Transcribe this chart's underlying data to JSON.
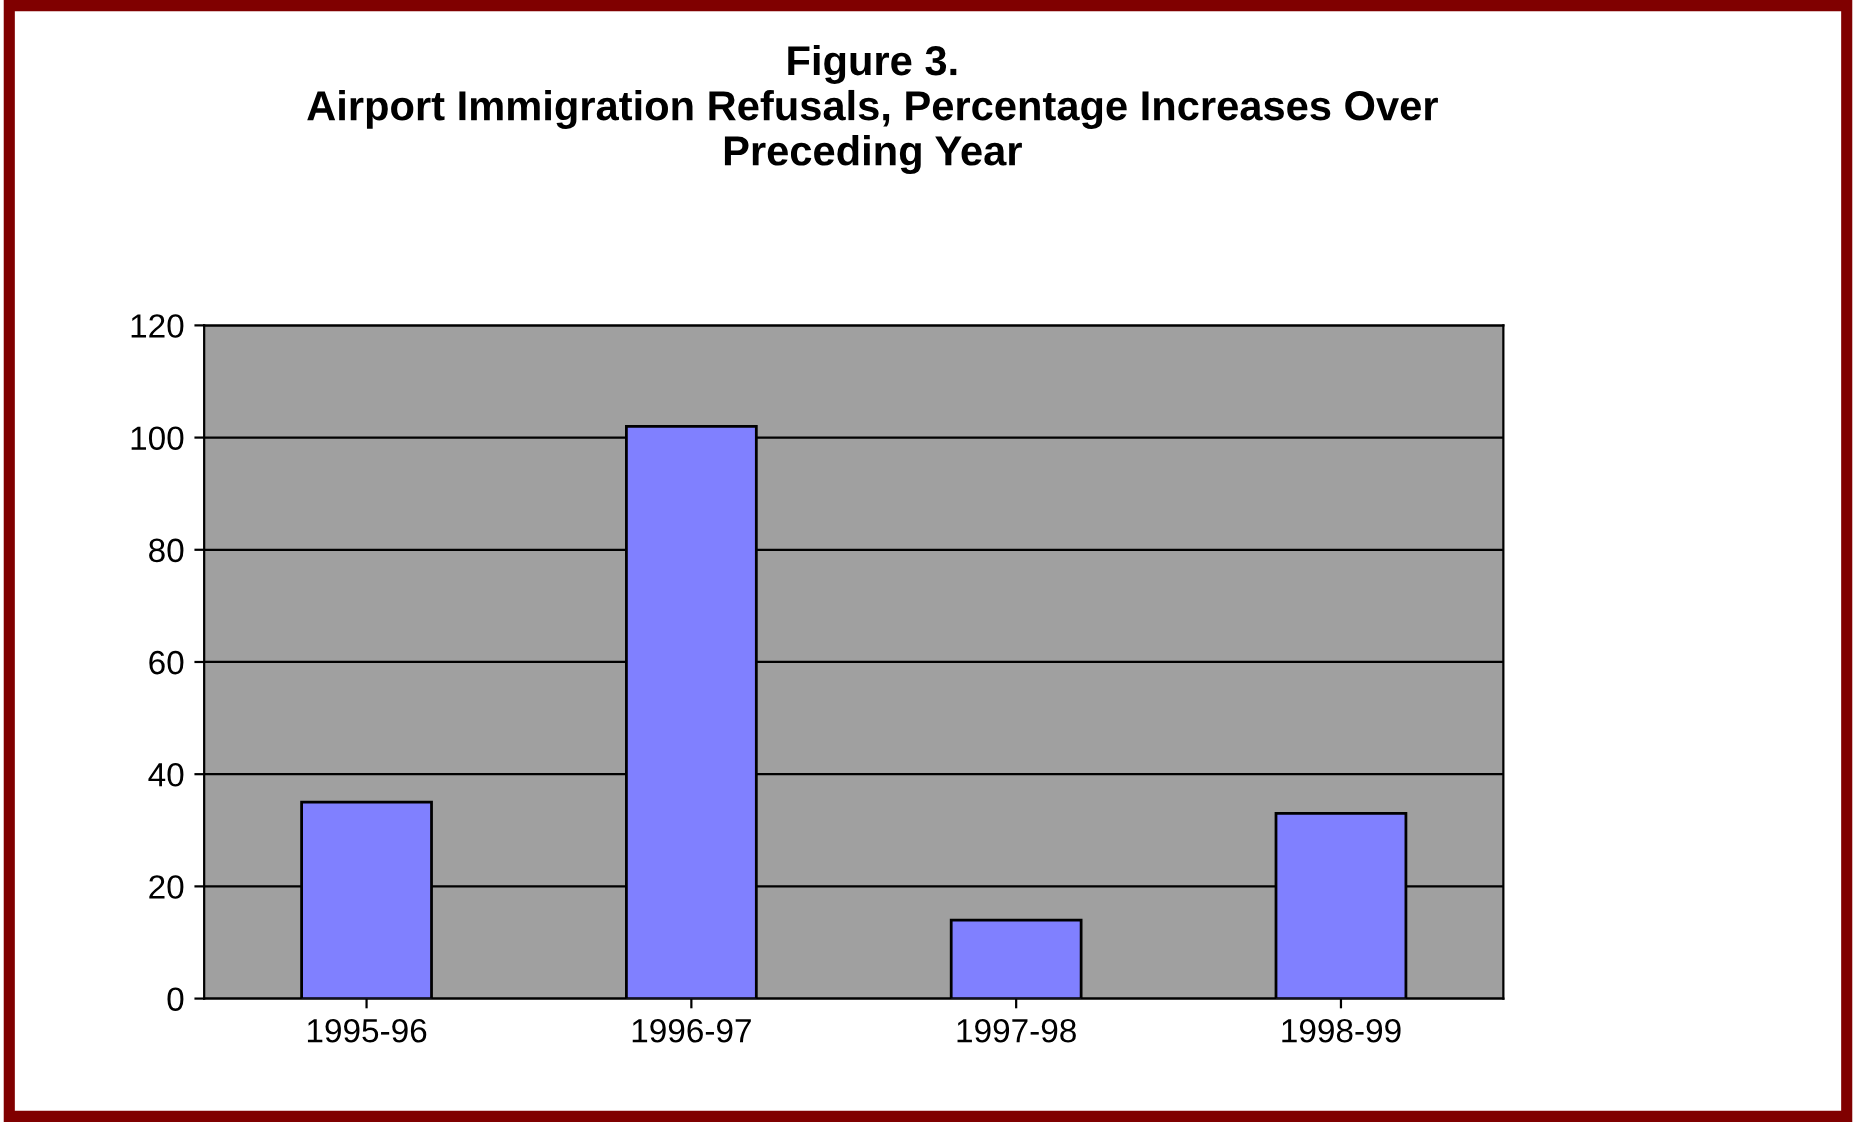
{
  "chart_data": {
    "type": "bar",
    "title": "Figure 3.\nAirport Immigration Refusals, Percentage Increases Over\nPreceding Year",
    "categories": [
      "1995-96",
      "1996-97",
      "1997-98",
      "1998-99"
    ],
    "values": [
      35,
      102,
      14,
      33
    ],
    "color": "#8080ff",
    "ylim": [
      0,
      120
    ],
    "yticks": [
      0,
      20,
      40,
      60,
      80,
      100,
      120
    ],
    "grid": "y"
  }
}
